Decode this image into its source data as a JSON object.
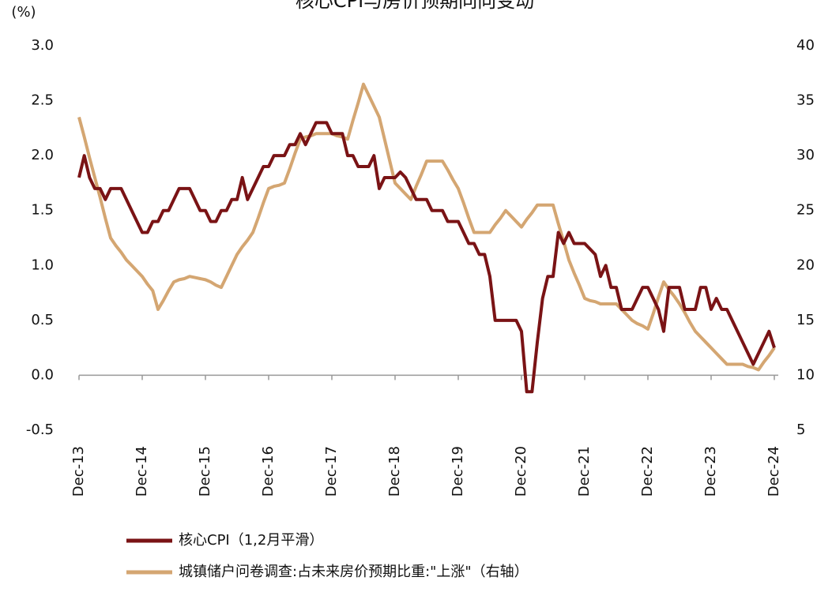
{
  "chart_data": {
    "type": "line",
    "title": "核心CPI与房价预期同向变动",
    "ylabel": "(%)",
    "categories": [
      "Dec-13",
      null,
      null,
      null,
      null,
      null,
      null,
      null,
      null,
      null,
      null,
      null,
      "Dec-14",
      null,
      null,
      null,
      null,
      null,
      null,
      null,
      null,
      null,
      null,
      null,
      "Dec-15",
      null,
      null,
      null,
      null,
      null,
      null,
      null,
      null,
      null,
      null,
      null,
      "Dec-16",
      null,
      null,
      null,
      null,
      null,
      null,
      null,
      null,
      null,
      null,
      null,
      "Dec-17",
      null,
      null,
      null,
      null,
      null,
      null,
      null,
      null,
      null,
      null,
      null,
      "Dec-18",
      null,
      null,
      null,
      null,
      null,
      null,
      null,
      null,
      null,
      null,
      null,
      "Dec-19",
      null,
      null,
      null,
      null,
      null,
      null,
      null,
      null,
      null,
      null,
      null,
      "Dec-20",
      null,
      null,
      null,
      null,
      null,
      null,
      null,
      null,
      null,
      null,
      null,
      "Dec-21",
      null,
      null,
      null,
      null,
      null,
      null,
      null,
      null,
      null,
      null,
      null,
      "Dec-22",
      null,
      null,
      null,
      null,
      null,
      null,
      null,
      null,
      null,
      null,
      null,
      "Dec-23",
      null,
      null,
      null,
      null,
      null,
      null,
      null,
      null,
      null,
      null,
      null,
      "Dec-24"
    ],
    "ylim": [
      -0.5,
      3.0
    ],
    "yticks": [
      -0.5,
      {
        "value": 0,
        "label": "0.0"
      },
      0.5,
      {
        "value": 1,
        "label": "1.0"
      },
      1.5,
      {
        "value": 2,
        "label": "2.0"
      },
      2.5,
      {
        "value": 3,
        "label": "3.0"
      }
    ],
    "y2lim": [
      5,
      40
    ],
    "y2ticks": [
      5,
      10,
      15,
      20,
      25,
      30,
      35,
      40
    ],
    "grid": false,
    "legend": "bottom",
    "series": [
      {
        "name": "核心CPI（1,2月平滑）",
        "color": "#7a1315",
        "values": [
          1.8,
          2.0,
          1.8,
          1.7,
          1.7,
          1.6,
          1.7,
          1.7,
          1.7,
          1.6,
          1.5,
          1.4,
          1.3,
          1.3,
          1.4,
          1.4,
          1.5,
          1.5,
          1.6,
          1.7,
          1.7,
          1.7,
          1.6,
          1.5,
          1.5,
          1.4,
          1.4,
          1.5,
          1.5,
          1.6,
          1.6,
          1.8,
          1.6,
          1.7,
          1.8,
          1.9,
          1.9,
          2.0,
          2.0,
          2.0,
          2.1,
          2.1,
          2.2,
          2.1,
          2.2,
          2.3,
          2.3,
          2.3,
          2.2,
          2.2,
          2.2,
          2.0,
          2.0,
          1.9,
          1.9,
          1.9,
          2.0,
          1.7,
          1.8,
          1.8,
          1.8,
          1.85,
          1.8,
          1.7,
          1.6,
          1.6,
          1.6,
          1.5,
          1.5,
          1.5,
          1.4,
          1.4,
          1.4,
          1.3,
          1.2,
          1.2,
          1.1,
          1.1,
          0.9,
          0.5,
          0.5,
          0.5,
          0.5,
          0.5,
          0.4,
          -0.15,
          -0.15,
          0.3,
          0.7,
          0.9,
          0.9,
          1.3,
          1.2,
          1.3,
          1.2,
          1.2,
          1.2,
          1.15,
          1.1,
          0.9,
          1.0,
          0.8,
          0.8,
          0.6,
          0.6,
          0.6,
          0.7,
          0.8,
          0.8,
          0.7,
          0.6,
          0.4,
          0.8,
          0.8,
          0.8,
          0.6,
          0.6,
          0.6,
          0.8,
          0.8,
          0.6,
          0.7,
          0.6,
          0.6,
          0.5,
          0.4,
          0.3,
          0.2,
          0.1,
          0.2,
          0.3,
          0.4,
          0.25
        ]
      },
      {
        "name": "城镇储户问卷调查:占未来房价预期比重:\"上涨\"（右轴）",
        "color": "#d4a672",
        "axis": "y2",
        "values": [
          33.5,
          31.7,
          29.8,
          28,
          26.2,
          24.3,
          22.5,
          21.8,
          21.2,
          20.5,
          20,
          19.5,
          19,
          18.3,
          17.7,
          16,
          16.8,
          17.7,
          18.5,
          18.7,
          18.8,
          19,
          18.9,
          18.8,
          18.7,
          18.5,
          18.2,
          18,
          19,
          20,
          21,
          21.7,
          22.3,
          23,
          24.3,
          25.7,
          27,
          27.2,
          27.3,
          27.5,
          28.8,
          30.2,
          31.5,
          31.7,
          31.8,
          32,
          32,
          32,
          32,
          31.8,
          31.7,
          31.5,
          33.2,
          34.8,
          36.5,
          35.5,
          34.5,
          33.5,
          31.5,
          29.5,
          27.5,
          27,
          26.5,
          26,
          27.2,
          28.3,
          29.5,
          29.5,
          29.5,
          29.5,
          28.7,
          27.8,
          27,
          25.7,
          24.3,
          23,
          23,
          23,
          23,
          23.7,
          24.3,
          25,
          24.5,
          24,
          23.5,
          24.2,
          24.8,
          25.5,
          25.5,
          25.5,
          25.5,
          23.8,
          22.2,
          20.5,
          19.3,
          18.2,
          17,
          16.8,
          16.7,
          16.5,
          16.5,
          16.5,
          16.5,
          16,
          15.5,
          15,
          14.7,
          14.5,
          14.2,
          15.6,
          17.1,
          18.5,
          17.8,
          17.2,
          16.5,
          15.7,
          14.8,
          14,
          13.5,
          13,
          12.5,
          12,
          11.5,
          11,
          11,
          11,
          11,
          10.8,
          10.7,
          10.5,
          11.2,
          11.8,
          12.5
        ]
      }
    ]
  }
}
